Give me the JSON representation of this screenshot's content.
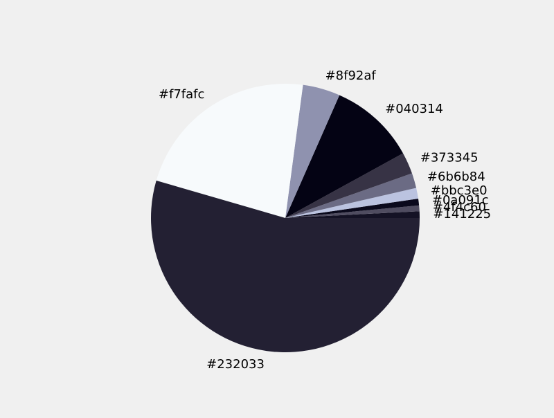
{
  "chart_data": {
    "type": "pie",
    "title": "",
    "slices": [
      {
        "label": "#141225",
        "value": 0.8,
        "color": "#141225"
      },
      {
        "label": "#4f4c60",
        "value": 0.7,
        "color": "#4f4c60"
      },
      {
        "label": "#0a091c",
        "value": 0.8,
        "color": "#0a091c"
      },
      {
        "label": "#bbc3e0",
        "value": 1.3,
        "color": "#bbc3e0"
      },
      {
        "label": "#6b6b84",
        "value": 1.8,
        "color": "#6b6b84"
      },
      {
        "label": "#373345",
        "value": 2.6,
        "color": "#373345"
      },
      {
        "label": "#040314",
        "value": 10.4,
        "color": "#040314"
      },
      {
        "label": "#8f92af",
        "value": 4.5,
        "color": "#8f92af"
      },
      {
        "label": "#f7fafc",
        "value": 22.6,
        "color": "#f7fafc"
      },
      {
        "label": "#232033",
        "value": 54.5,
        "color": "#232033"
      }
    ]
  }
}
